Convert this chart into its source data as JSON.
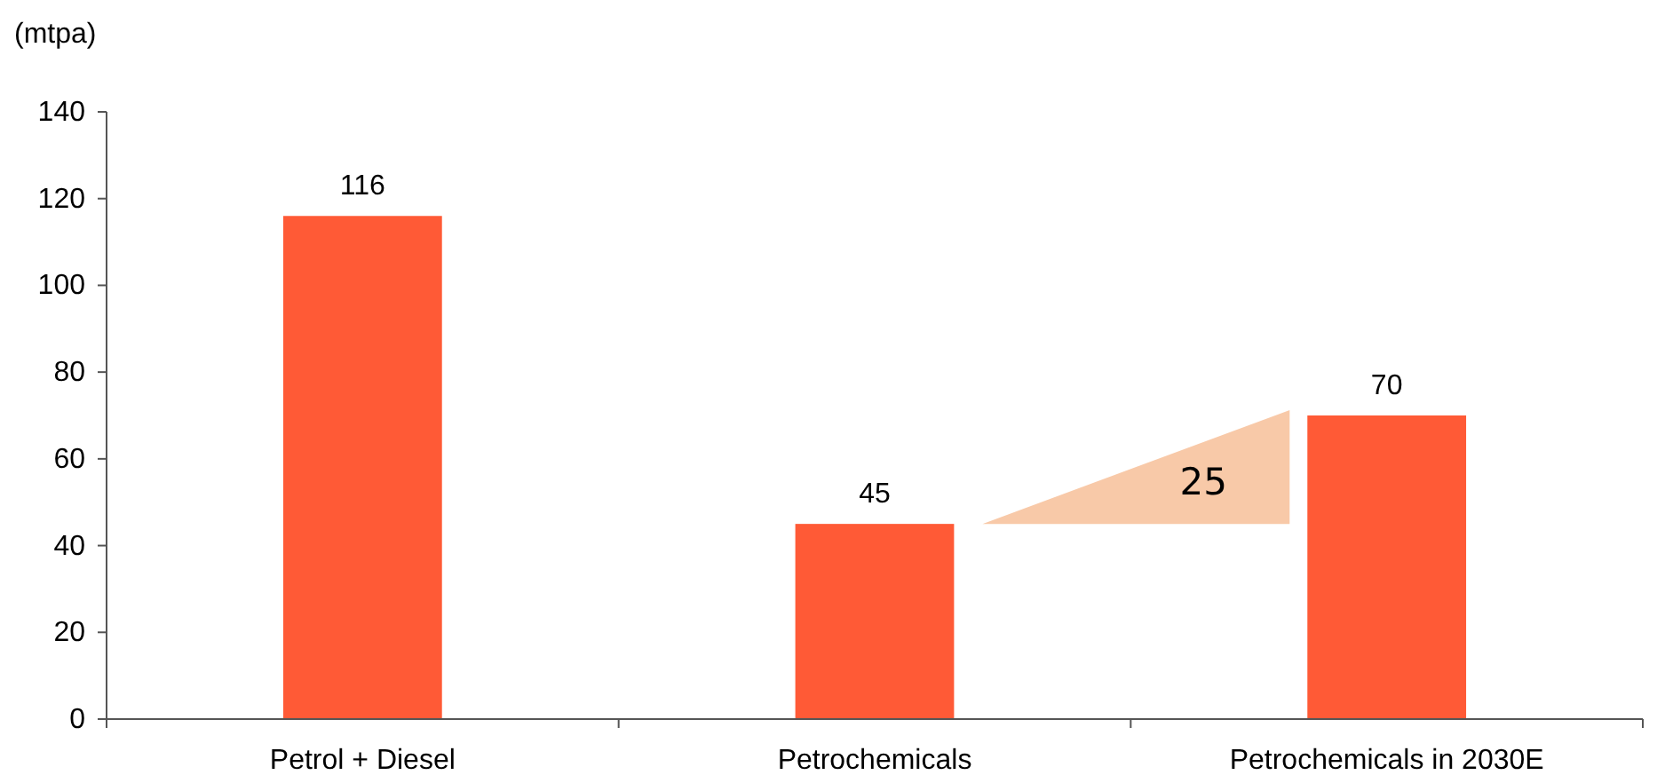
{
  "chart_data": {
    "type": "bar",
    "ylabel": "(mtpa)",
    "categories": [
      "Petrol + Diesel",
      "Petrochemicals",
      "Petrochemicals in 2030E"
    ],
    "values": [
      116,
      45,
      70
    ],
    "color": "#ff5a36",
    "ylim": [
      0,
      140
    ],
    "yticks": [
      0,
      20,
      40,
      60,
      80,
      100,
      120,
      140
    ],
    "grid": false,
    "data_labels": true,
    "annotations": [
      "25"
    ]
  }
}
